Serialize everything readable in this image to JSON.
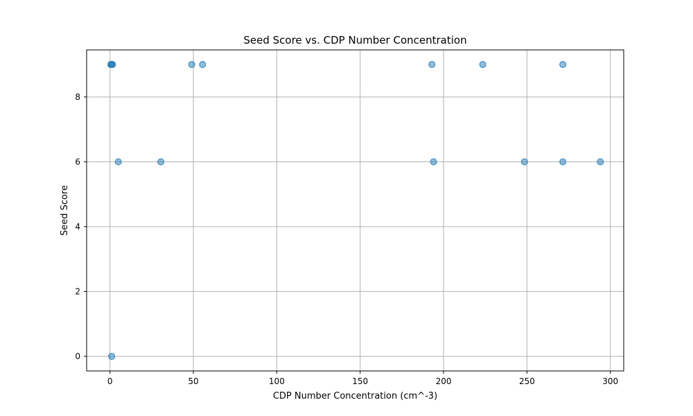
{
  "chart_data": {
    "type": "scatter",
    "title": "Seed Score vs. CDP Number Concentration",
    "xlabel": "CDP Number Concentration (cm^-3)",
    "ylabel": "Seed Score",
    "xlim": [
      -14,
      308
    ],
    "ylim": [
      -0.45,
      9.45
    ],
    "xticks": [
      0,
      50,
      100,
      150,
      200,
      250,
      300
    ],
    "yticks": [
      0,
      2,
      4,
      6,
      8
    ],
    "grid": true,
    "legend": "none",
    "marker_color": "#1f77b4",
    "marker_alpha": 0.5,
    "points": [
      {
        "x": 0.5,
        "y": 9
      },
      {
        "x": 1.0,
        "y": 9
      },
      {
        "x": 1.5,
        "y": 9
      },
      {
        "x": 49,
        "y": 9
      },
      {
        "x": 55.5,
        "y": 9
      },
      {
        "x": 193,
        "y": 9
      },
      {
        "x": 223.5,
        "y": 9
      },
      {
        "x": 271.5,
        "y": 9
      },
      {
        "x": 5,
        "y": 6
      },
      {
        "x": 30.5,
        "y": 6
      },
      {
        "x": 194,
        "y": 6
      },
      {
        "x": 248.5,
        "y": 6
      },
      {
        "x": 271.5,
        "y": 6
      },
      {
        "x": 294,
        "y": 6
      },
      {
        "x": 1,
        "y": 0
      }
    ]
  }
}
